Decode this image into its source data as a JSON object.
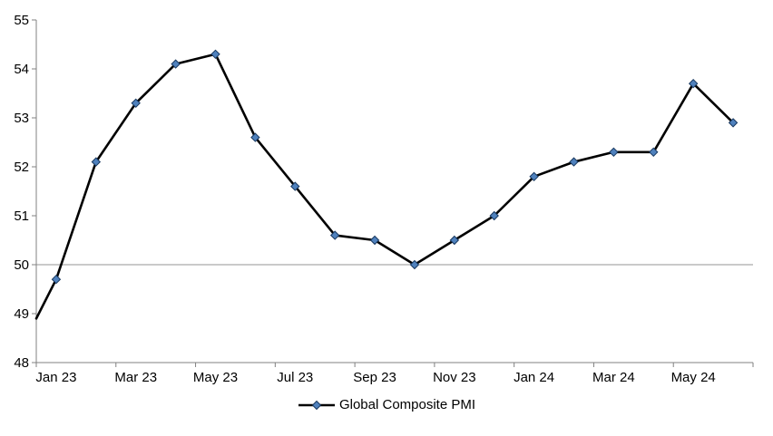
{
  "chart_data": {
    "type": "line",
    "title": "",
    "series_name": "Global Composite PMI",
    "x": [
      "Jan 23",
      "Feb 23",
      "Mar 23",
      "Apr 23",
      "May 23",
      "Jun 23",
      "Jul 23",
      "Aug 23",
      "Sep 23",
      "Oct 23",
      "Nov 23",
      "Dec 23",
      "Jan 24",
      "Feb 24",
      "Mar 24",
      "Apr 24",
      "May 24",
      "Jun 24"
    ],
    "values": [
      49.7,
      52.1,
      53.3,
      54.1,
      54.3,
      52.6,
      51.6,
      50.6,
      50.5,
      50.0,
      50.5,
      51.0,
      51.8,
      52.1,
      52.3,
      52.3,
      53.7,
      52.9
    ],
    "line_start_at_axis_value": 48.9,
    "ylim": [
      48,
      55
    ],
    "yticks": [
      48,
      49,
      50,
      51,
      52,
      53,
      54,
      55
    ],
    "xtick_label_interval": 2,
    "xtick_labels_shown": [
      "Jan 23",
      "Mar 23",
      "May 23",
      "Jul 23",
      "Sep 23",
      "Nov 23",
      "Jan 24",
      "Mar 24",
      "May 24"
    ],
    "reference_line_y": 50,
    "grid": "off",
    "legend_position": "bottom",
    "colors": {
      "line": "#000000",
      "marker": "#4F81BD",
      "marker_edge": "#17375E",
      "axis": "#808080",
      "reference_line": "#969696",
      "text": "#000000",
      "background": "#FFFFFF"
    }
  },
  "legend": {
    "label": "Global Composite PMI"
  }
}
